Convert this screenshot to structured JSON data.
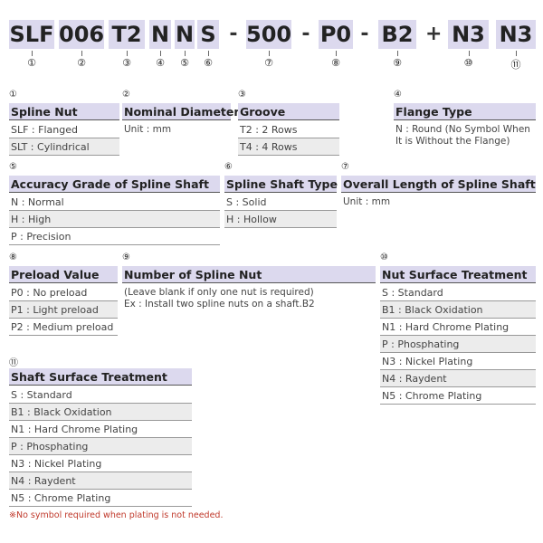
{
  "code": {
    "items": [
      {
        "code": "SLF",
        "marker": "①"
      },
      {
        "code": "006",
        "marker": "②"
      },
      {
        "code": "T2",
        "marker": "③"
      },
      {
        "code": "N",
        "marker": "④"
      },
      {
        "code": "N",
        "marker": "⑤"
      },
      {
        "code": "S",
        "marker": "⑥"
      },
      {
        "sep": "-"
      },
      {
        "code": "500",
        "marker": "⑦"
      },
      {
        "sep": "-"
      },
      {
        "code": "P0",
        "marker": "⑧"
      },
      {
        "sep": "-"
      },
      {
        "code": "B2",
        "marker": "⑨"
      },
      {
        "sep": "+"
      },
      {
        "code": "N3",
        "marker": "⑩"
      },
      {
        "code": "N3",
        "marker": "⑪"
      }
    ]
  },
  "sections": [
    {
      "marker": "①",
      "title": "Spline Nut",
      "rows": [
        "SLF : Flanged",
        "SLT : Cylindrical"
      ]
    },
    {
      "marker": "②",
      "title": "Nominal Diameter",
      "text": [
        "Unit : mm"
      ]
    },
    {
      "marker": "③",
      "title": "Groove",
      "rows": [
        "T2 : 2 Rows",
        "T4 : 4 Rows"
      ]
    },
    {
      "marker": "④",
      "title": "Flange Type",
      "text": [
        "N : Round (No Symbol When",
        "It is Without the Flange)"
      ]
    },
    {
      "marker": "⑤",
      "title": "Accuracy Grade of Spline Shaft",
      "rows": [
        "N : Normal",
        "H : High",
        "P : Precision"
      ]
    },
    {
      "marker": "⑥",
      "title": "Spline Shaft Type",
      "rows": [
        "S : Solid",
        "H : Hollow"
      ]
    },
    {
      "marker": "⑦",
      "title": "Overall Length of Spline Shaft",
      "text": [
        "Unit : mm"
      ]
    },
    {
      "marker": "⑧",
      "title": "Preload Value",
      "rows": [
        "P0 : No preload",
        "P1 : Light preload",
        "P2 : Medium preload"
      ]
    },
    {
      "marker": "⑨",
      "title": "Number of Spline Nut",
      "text": [
        "(Leave blank if only one nut is required)",
        "Ex : Install two spline nuts on a shaft.B2"
      ]
    },
    {
      "marker": "⑩",
      "title": "Nut Surface Treatment",
      "rows": [
        "S : Standard",
        "B1 : Black Oxidation",
        "N1 : Hard Chrome Plating",
        "P : Phosphating",
        "N3 : Nickel Plating",
        "N4 : Raydent",
        "N5 : Chrome Plating"
      ]
    },
    {
      "marker": "⑪",
      "title": "Shaft Surface Treatment",
      "rows": [
        "S : Standard",
        "B1 : Black Oxidation",
        "N1 : Hard Chrome Plating",
        "P : Phosphating",
        "N3 : Nickel Plating",
        "N4 : Raydent",
        "N5 : Chrome Plating"
      ]
    }
  ],
  "footnote": "※No symbol required when plating is not needed."
}
